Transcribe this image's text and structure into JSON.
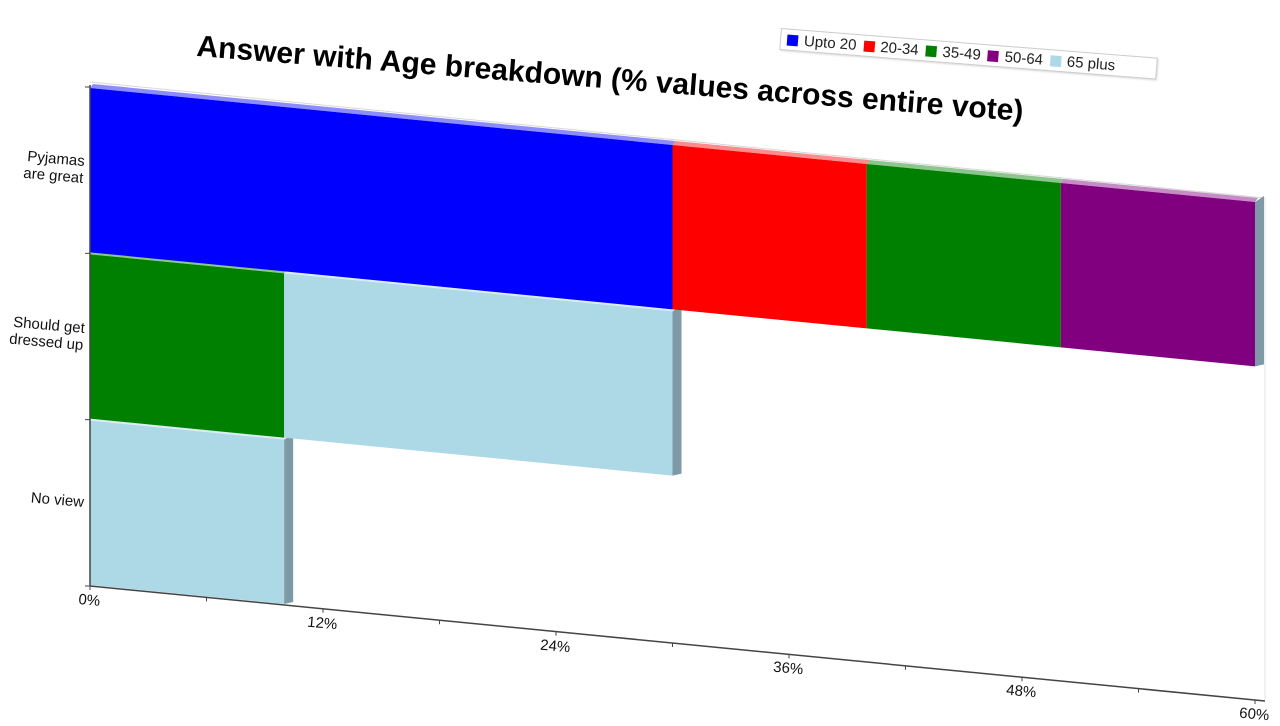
{
  "chart_data": {
    "type": "bar",
    "orientation": "horizontal",
    "stacked": true,
    "title": "Answer with Age breakdown (% values across entire vote)",
    "categories": [
      "No view",
      "Should get dressed up",
      "Pyjamas are great"
    ],
    "category_labels": [
      [
        "No view"
      ],
      [
        "Should get",
        "dressed up"
      ],
      [
        "Pyjamas",
        "are great"
      ]
    ],
    "series": [
      {
        "name": "Upto 20",
        "color": "#0000ff",
        "values": [
          0,
          0,
          30
        ]
      },
      {
        "name": "20-34",
        "color": "#ff0000",
        "values": [
          0,
          0,
          10
        ]
      },
      {
        "name": "35-49",
        "color": "#008000",
        "values": [
          0,
          10,
          10
        ]
      },
      {
        "name": "50-64",
        "color": "#800080",
        "values": [
          0,
          0,
          10
        ]
      },
      {
        "name": "65 plus",
        "color": "#add8e6",
        "values": [
          10,
          20,
          0
        ]
      }
    ],
    "xlim": [
      0,
      60
    ],
    "xticks": [
      "0%",
      "12%",
      "24%",
      "36%",
      "48%",
      "60%"
    ],
    "legend_position": "top-right",
    "grid": false
  }
}
